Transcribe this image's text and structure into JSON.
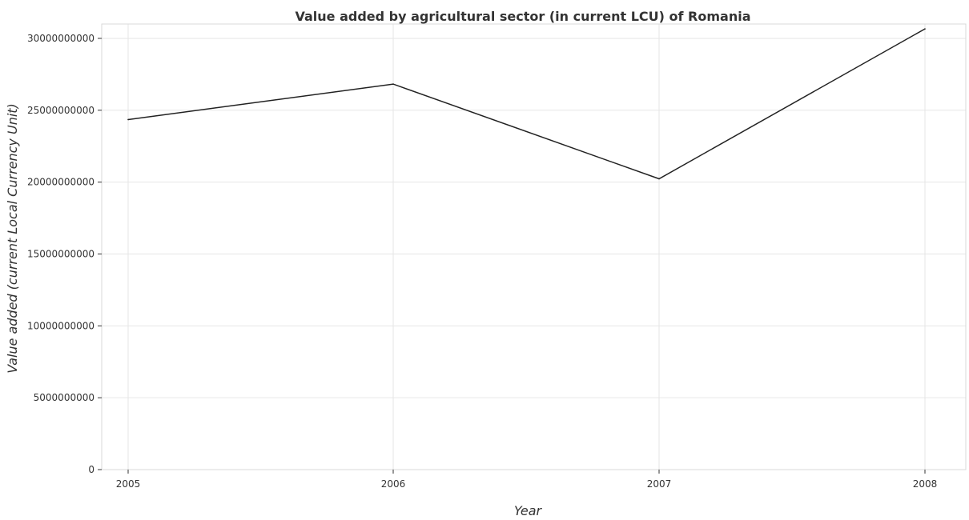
{
  "chart_data": {
    "type": "line",
    "title": "Value added by agricultural sector (in current LCU) of Romania",
    "xlabel": "Year",
    "ylabel": "Value added (current Local Currency Unit)",
    "categories": [
      "2005",
      "2006",
      "2007",
      "2008"
    ],
    "series": [
      {
        "values": [
          24350000000,
          26820000000,
          20230000000,
          30660000000
        ]
      }
    ],
    "ylim": [
      0,
      31000000000
    ],
    "yticks": [
      0,
      5000000000,
      10000000000,
      15000000000,
      20000000000,
      25000000000,
      30000000000
    ],
    "ytick_labels": [
      "0",
      "5000000000",
      "10000000000",
      "15000000000",
      "20000000000",
      "25000000000",
      "30000000000"
    ],
    "grid": true,
    "line_color": "#222222"
  }
}
